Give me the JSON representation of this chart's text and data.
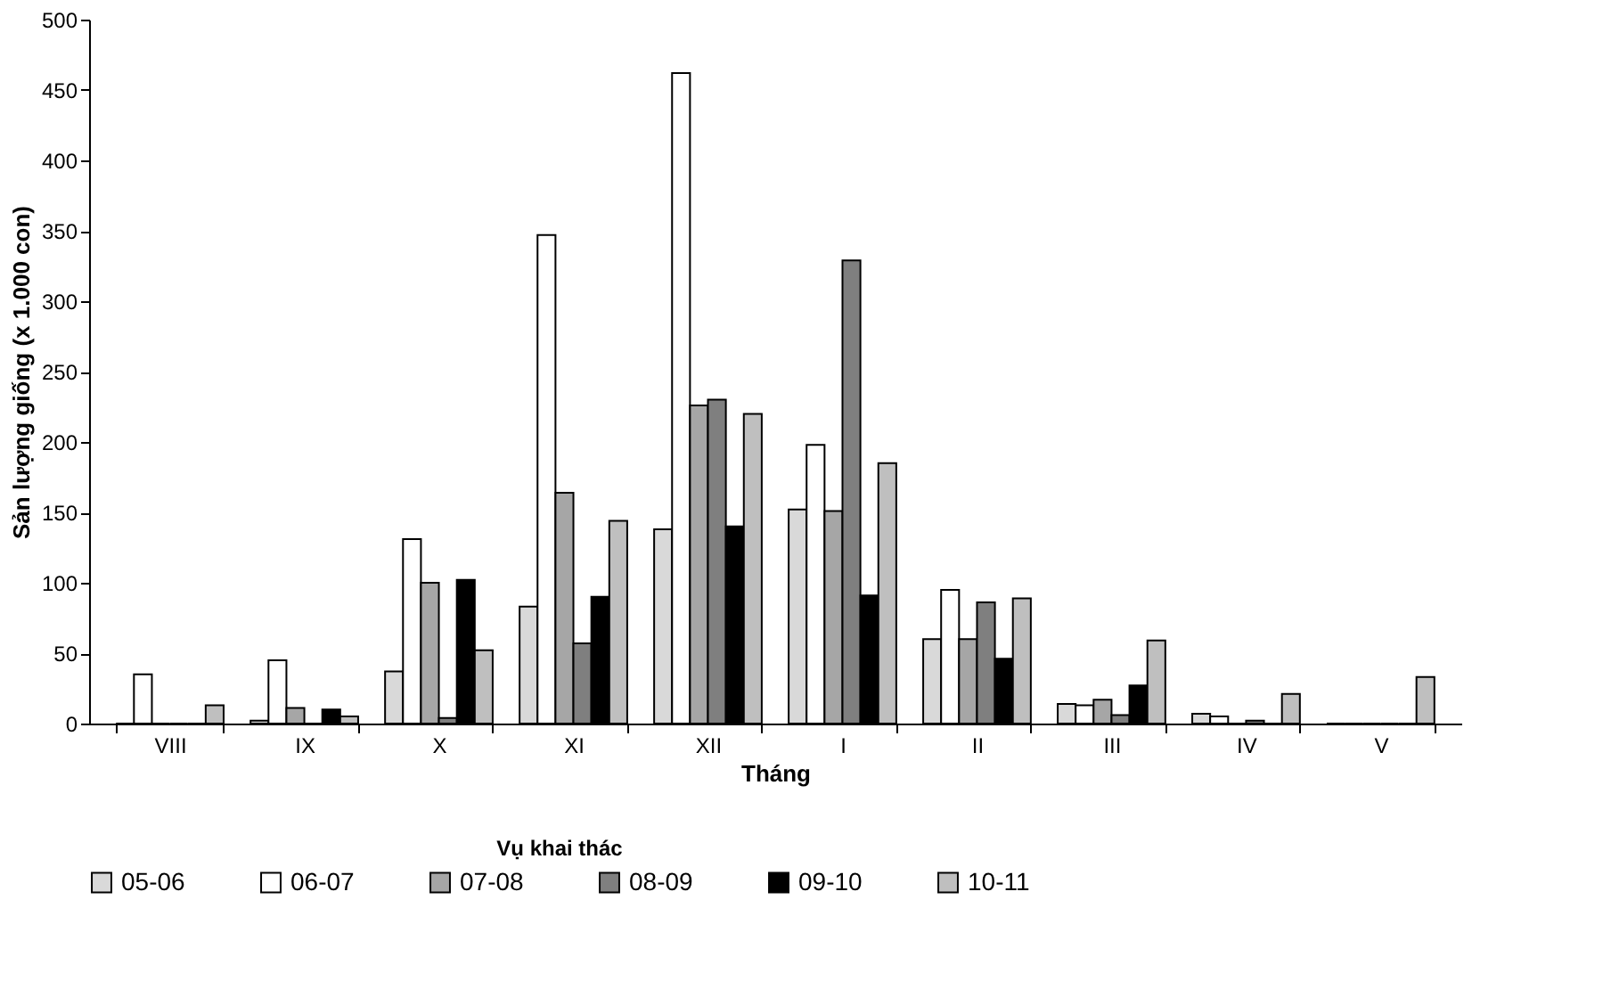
{
  "chart_data": {
    "type": "bar",
    "xlabel": "Tháng",
    "ylabel": "Sản lượng giống (x 1.000 con)",
    "legend_title": "Vụ khai thác",
    "categories": [
      "VIII",
      "IX",
      "X",
      "XI",
      "XII",
      "I",
      "II",
      "III",
      "IV",
      "V"
    ],
    "series": [
      {
        "name": "05-06",
        "color": "#d9d9d9",
        "values": [
          0,
          2,
          37,
          83,
          138,
          152,
          60,
          14,
          7,
          0
        ]
      },
      {
        "name": "06-07",
        "color": "#ffffff",
        "values": [
          35,
          45,
          131,
          347,
          462,
          198,
          95,
          13,
          5,
          0
        ]
      },
      {
        "name": "07-08",
        "color": "#a6a6a6",
        "values": [
          0,
          11,
          100,
          164,
          226,
          151,
          60,
          17,
          0,
          0
        ]
      },
      {
        "name": "08-09",
        "color": "#7f7f7f",
        "values": [
          0,
          0,
          4,
          57,
          230,
          329,
          86,
          6,
          2,
          0
        ]
      },
      {
        "name": "09-10",
        "color": "#000000",
        "values": [
          0,
          10,
          102,
          90,
          140,
          91,
          46,
          27,
          0,
          0
        ]
      },
      {
        "name": "10-11",
        "color": "#bfbfbf",
        "values": [
          13,
          5,
          52,
          144,
          220,
          185,
          89,
          59,
          21,
          33
        ]
      }
    ],
    "ylim": [
      0,
      500
    ],
    "yticks": [
      0,
      50,
      100,
      150,
      200,
      250,
      300,
      350,
      400,
      450,
      500
    ],
    "grid": false,
    "legend": "bottom"
  }
}
